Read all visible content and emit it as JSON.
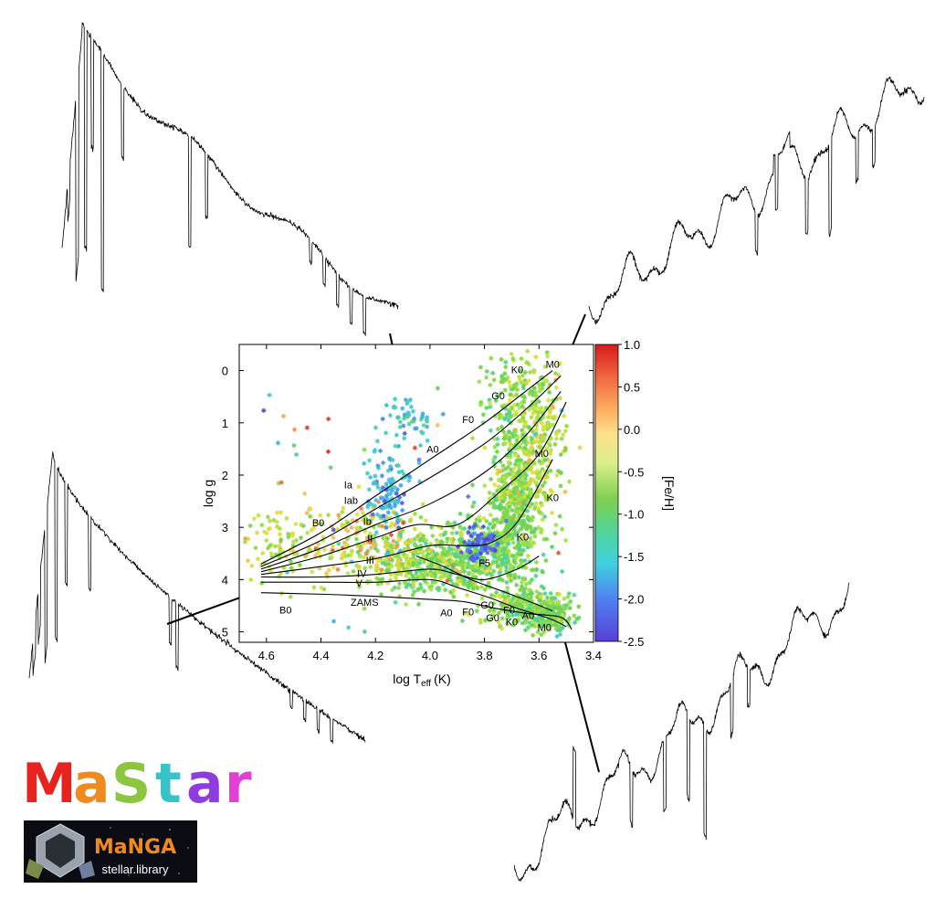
{
  "chart_data": {
    "type": "scatter",
    "xlabel": "log T",
    "xlabel_sub": "eff",
    "xlabel_unit": "(K)",
    "ylabel": "log g",
    "xlim": [
      4.7,
      3.4
    ],
    "ylim": [
      -0.5,
      5.2
    ],
    "x_ticks": [
      "4.6",
      "4.4",
      "4.2",
      "4.0",
      "3.8",
      "3.6",
      "3.4"
    ],
    "y_ticks": [
      "0",
      "1",
      "2",
      "3",
      "4",
      "5"
    ],
    "colorbar": {
      "label": "[Fe/H]",
      "range": [
        -2.5,
        1.0
      ],
      "ticks": [
        "1.0",
        "0.5",
        "0.0",
        "-0.5",
        "-1.0",
        "-1.5",
        "-2.0",
        "-2.5"
      ],
      "colors": [
        "#d7191c",
        "#f46d43",
        "#fdae61",
        "#fee08b",
        "#d9ef8b",
        "#a6d96a",
        "#66bd63",
        "#3fd0c8",
        "#74add1",
        "#4575b4",
        "#313695"
      ]
    },
    "marker": "asterisk",
    "luminosity_classes": [
      "Ia",
      "Iab",
      "Ib",
      "II",
      "III",
      "IV",
      "V",
      "ZAMS"
    ],
    "spectral_type_labels": [
      "B0",
      "A0",
      "F0",
      "G0",
      "K0",
      "M0",
      "F5",
      "B0",
      "A0",
      "F0",
      "G0",
      "K0",
      "M0",
      "K0",
      "M0",
      "G0",
      "F0",
      "A0",
      "K0"
    ],
    "grid": false,
    "legend": "colorbar right"
  },
  "logo": {
    "title": "MaStar",
    "title_colors": [
      "#e8231f",
      "#f08a1c",
      "#8cc63f",
      "#37c4c8",
      "#8e3ce0",
      "#e23fd6"
    ],
    "badge_title": "MaNGA",
    "badge_subtitle": "stellar.library"
  }
}
